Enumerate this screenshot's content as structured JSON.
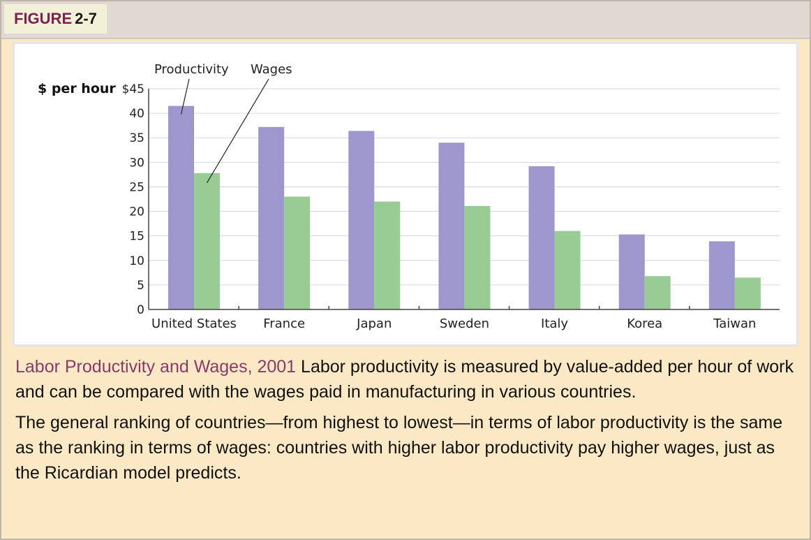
{
  "figure": {
    "label_word": "FIGURE",
    "label_number": "2-7"
  },
  "caption": {
    "title": "Labor Productivity and Wages, 2001",
    "text1": "Labor productivity is measured by value-added per hour of work and can be compared with the wages paid in manufacturing in various countries.",
    "text2": "The general ranking of countries—from highest to lowest—in terms of labor productivity is the same as the ranking in terms of wages: countries with higher labor productivity pay higher wages, just as the Ricardian model predicts."
  },
  "chart_data": {
    "type": "bar",
    "title": "",
    "ylabel": "$ per hour",
    "xlabel": "",
    "ylim": [
      0,
      45
    ],
    "yticks": [
      "0",
      "5",
      "10",
      "15",
      "20",
      "25",
      "30",
      "35",
      "40",
      "$45"
    ],
    "categories": [
      "United States",
      "France",
      "Japan",
      "Sweden",
      "Italy",
      "Korea",
      "Taiwan"
    ],
    "series": [
      {
        "name": "Productivity",
        "color": "#9d97cd",
        "values": [
          41.5,
          37.2,
          36.4,
          34.0,
          29.2,
          15.3,
          13.9
        ]
      },
      {
        "name": "Wages",
        "color": "#99cb94",
        "values": [
          27.8,
          23.0,
          22.0,
          21.1,
          16.0,
          6.8,
          6.5
        ]
      }
    ],
    "grid": true,
    "legend": "annotated labels with pointer lines at top-left"
  }
}
